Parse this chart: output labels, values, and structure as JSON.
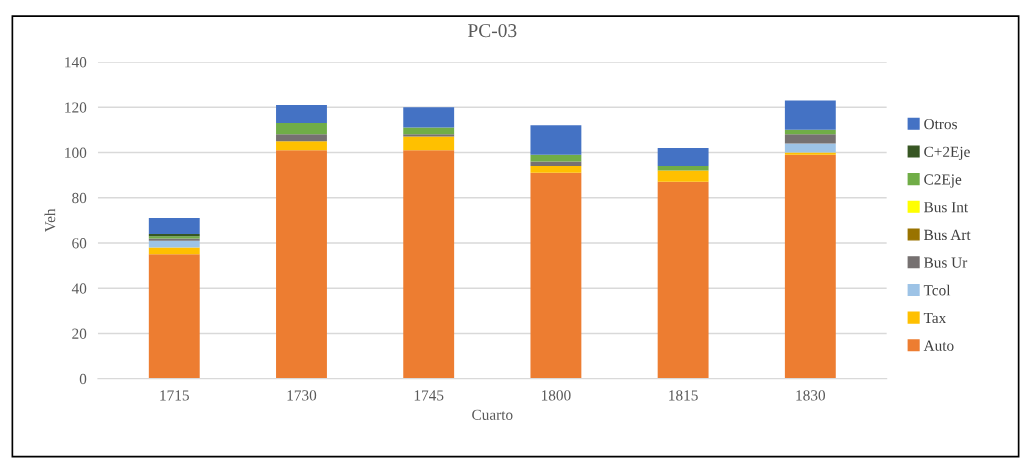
{
  "chart_data": {
    "type": "bar",
    "title": "PC-03",
    "xlabel": "Cuarto",
    "ylabel": "Veh",
    "categories": [
      "1715",
      "1730",
      "1745",
      "1800",
      "1815",
      "1830"
    ],
    "stacked": true,
    "ylim": [
      0,
      140
    ],
    "yticks": [
      0,
      20,
      40,
      60,
      80,
      100,
      120,
      140
    ],
    "grid": "y",
    "legend": "right",
    "series": [
      {
        "name": "Auto",
        "color": "#ed7d31",
        "values": [
          55,
          101,
          101,
          91,
          87,
          99
        ]
      },
      {
        "name": "Tax",
        "color": "#ffc000",
        "values": [
          3,
          4,
          6,
          3,
          5,
          1
        ]
      },
      {
        "name": "Tcol",
        "color": "#9dc3e6",
        "values": [
          3,
          0,
          0,
          0,
          0,
          4
        ]
      },
      {
        "name": "Bus Ur",
        "color": "#767171",
        "values": [
          1,
          3,
          1,
          2,
          0,
          4
        ]
      },
      {
        "name": "Bus Art",
        "color": "#997300",
        "values": [
          0,
          0,
          0,
          0,
          0,
          0
        ]
      },
      {
        "name": "Bus Int",
        "color": "#ffff00",
        "values": [
          0,
          0,
          0,
          0,
          0,
          0
        ]
      },
      {
        "name": "C2Eje",
        "color": "#70ad47",
        "values": [
          1,
          5,
          3,
          3,
          2,
          2
        ]
      },
      {
        "name": "C+2Eje",
        "color": "#375623",
        "values": [
          1,
          0,
          0,
          0,
          0,
          0
        ]
      },
      {
        "name": "Otros",
        "color": "#4472c4",
        "values": [
          7,
          8,
          9,
          13,
          8,
          13
        ]
      }
    ]
  }
}
